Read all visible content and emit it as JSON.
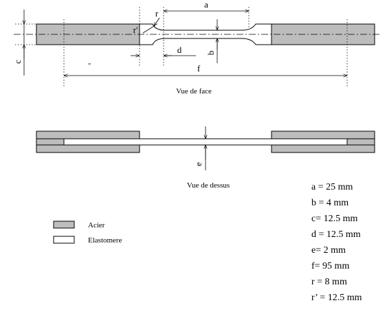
{
  "front_view": {
    "caption": "Vue de face",
    "labels": {
      "a": "a",
      "b": "b",
      "c": "c",
      "d": "d",
      "f": "f",
      "r": "r",
      "r_prime": "r'"
    }
  },
  "top_view": {
    "caption": "Vue de dessus",
    "labels": {
      "e": "e"
    }
  },
  "legend": {
    "items": [
      {
        "label": "Acier",
        "color": "#bdbdbd"
      },
      {
        "label": "Elastomere",
        "color": "#ffffff"
      }
    ]
  },
  "dimensions": [
    "a = 25 mm",
    "b = 4 mm",
    "c= 12.5 mm",
    "d = 12.5 mm",
    "e= 2 mm",
    "f= 95 mm",
    "r = 8 mm",
    "r’ = 12.5 mm"
  ]
}
